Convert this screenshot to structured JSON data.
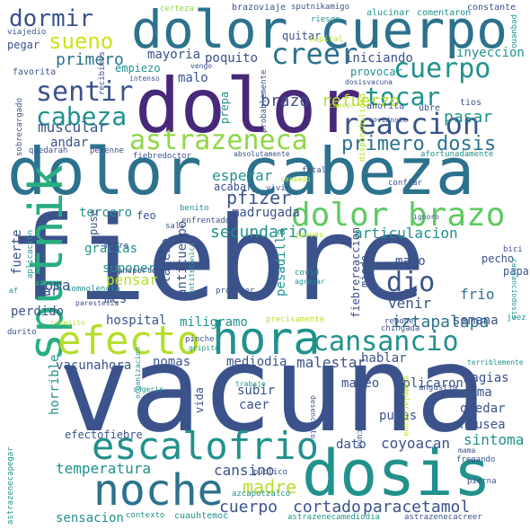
{
  "words": [
    {
      "text": "fiebre",
      "color": "#3b528b"
    },
    {
      "text": "vacuna",
      "color": "#3b528b"
    },
    {
      "text": "dolor",
      "color": "#482878"
    },
    {
      "text": "dolor cuerpo",
      "color": "#2c728e"
    },
    {
      "text": "dolor cabeza",
      "color": "#2c728e"
    },
    {
      "text": "dosis",
      "color": "#21918c"
    },
    {
      "text": "noche",
      "color": "#2c728e"
    },
    {
      "text": "sputnik",
      "color": "#28ae80"
    },
    {
      "text": "efecto",
      "color": "#b5de2b"
    },
    {
      "text": "hora",
      "color": "#21918c"
    },
    {
      "text": "escalofrio",
      "color": "#21918c"
    },
    {
      "text": "astrazeneca",
      "color": "#8fd744"
    },
    {
      "text": "dolor brazo",
      "color": "#5ec962"
    },
    {
      "text": "reaccion",
      "color": "#3b528b"
    },
    {
      "text": "creer",
      "color": "#2c728e"
    },
    {
      "text": "cuerpo",
      "color": "#21918c"
    },
    {
      "text": "sentir",
      "color": "#3b528b"
    },
    {
      "text": "cabeza",
      "color": "#21918c"
    },
    {
      "text": "tocar",
      "color": "#21918c"
    },
    {
      "text": "cansancio",
      "color": "#21918c"
    },
    {
      "text": "dormir",
      "color": "#3b528b"
    },
    {
      "text": "sueno",
      "color": "#cfe11c"
    },
    {
      "text": "dio",
      "color": "#3b528b"
    },
    {
      "text": "primero dosis",
      "color": "#2c728e"
    },
    {
      "text": "cortado",
      "color": "#3b528b"
    },
    {
      "text": "paracetamol",
      "color": "#3b528b"
    },
    {
      "text": "cuerpo",
      "color": "#3b528b"
    },
    {
      "text": "madre",
      "color": "#b5de2b"
    },
    {
      "text": "temperatura",
      "color": "#21918c"
    },
    {
      "text": "primero",
      "color": "#2c728e"
    },
    {
      "text": "pfizer",
      "color": "#3b528b"
    },
    {
      "text": "secundario",
      "color": "#21918c"
    },
    {
      "text": "articulacion",
      "color": "#21918c"
    },
    {
      "text": "coyoacan",
      "color": "#3b528b"
    },
    {
      "text": "iztapalapa",
      "color": "#2c728e"
    },
    {
      "text": "cansino",
      "color": "#3b528b"
    },
    {
      "text": "sintoma",
      "color": "#21918c"
    },
    {
      "text": "refuerzo",
      "color": "#b5de2b"
    },
    {
      "text": "pasar",
      "color": "#21918c"
    },
    {
      "text": "muscular",
      "color": "#3b528b"
    },
    {
      "text": "esperar",
      "color": "#21918c"
    },
    {
      "text": "brazo",
      "color": "#3b528b"
    },
    {
      "text": "malestar",
      "color": "#3b528b"
    },
    {
      "text": "venir",
      "color": "#3b528b"
    },
    {
      "text": "fuerte",
      "color": "#3b528b"
    },
    {
      "text": "toma",
      "color": "#3b528b"
    },
    {
      "text": "andar",
      "color": "#3b528b"
    },
    {
      "text": "pensar",
      "color": "#b5de2b"
    },
    {
      "text": "hospital",
      "color": "#3b528b"
    },
    {
      "text": "mareo",
      "color": "#3b528b"
    },
    {
      "text": "aplicaron",
      "color": "#3b528b"
    },
    {
      "text": "frio",
      "color": "#2c728e"
    },
    {
      "text": "madrugada",
      "color": "#3b528b"
    },
    {
      "text": "miligramo",
      "color": "#21918c"
    },
    {
      "text": "quedar",
      "color": "#3b528b"
    },
    {
      "text": "cama",
      "color": "#3b528b"
    },
    {
      "text": "nausea",
      "color": "#3b528b"
    },
    {
      "text": "magias",
      "color": "#3b528b"
    },
    {
      "text": "mediodia",
      "color": "#3b528b"
    },
    {
      "text": "nomas",
      "color": "#3b528b"
    },
    {
      "text": "vacunahora",
      "color": "#3b528b"
    },
    {
      "text": "horrible",
      "color": "#21918c"
    },
    {
      "text": "efectofiebre",
      "color": "#3b528b"
    },
    {
      "text": "subir",
      "color": "#3b528b"
    },
    {
      "text": "caer",
      "color": "#3b528b"
    },
    {
      "text": "hablar",
      "color": "#3b528b"
    },
    {
      "text": "pumas",
      "color": "#3b528b"
    },
    {
      "text": "dato",
      "color": "#3b528b"
    },
    {
      "text": "sensacion",
      "color": "#21918c"
    },
    {
      "text": "mayoria",
      "color": "#3b528b"
    },
    {
      "text": "poquito",
      "color": "#3b528b"
    },
    {
      "text": "iniciando",
      "color": "#3b528b"
    },
    {
      "text": "inyeccion",
      "color": "#21918c"
    },
    {
      "text": "quitar",
      "color": "#3b528b"
    },
    {
      "text": "empiezo",
      "color": "#21918c"
    },
    {
      "text": "malo",
      "color": "#3b528b"
    },
    {
      "text": "provocar",
      "color": "#21918c"
    },
    {
      "text": "pegar",
      "color": "#3b528b"
    },
    {
      "text": "favorita",
      "color": "#3b528b"
    },
    {
      "text": "tercero",
      "color": "#21918c"
    },
    {
      "text": "gracias",
      "color": "#21918c"
    },
    {
      "text": "feo",
      "color": "#3b528b"
    },
    {
      "text": "puse",
      "color": "#3b528b"
    },
    {
      "text": "suponer",
      "color": "#21918c"
    },
    {
      "text": "placebo",
      "color": "#3b528b"
    },
    {
      "text": "pesadilla",
      "color": "#21918c"
    },
    {
      "text": "anticuerpo",
      "color": "#3b528b"
    },
    {
      "text": "mes",
      "color": "#3b528b"
    },
    {
      "text": "mano",
      "color": "#3b528b"
    },
    {
      "text": "semana",
      "color": "#3b528b"
    },
    {
      "text": "perdido",
      "color": "#3b528b"
    },
    {
      "text": "par",
      "color": "#3b528b"
    },
    {
      "text": "pecho",
      "color": "#3b528b"
    },
    {
      "text": "papa",
      "color": "#3b528b"
    },
    {
      "text": "miedo",
      "color": "#3b528b"
    },
    {
      "text": "fiebrereaccion",
      "color": "#3b528b"
    },
    {
      "text": "vida",
      "color": "#3b528b"
    },
    {
      "text": "acabar",
      "color": "#3b528b"
    },
    {
      "text": "certeza",
      "color": "#8fd744"
    },
    {
      "text": "brazoviaje",
      "color": "#3b528b"
    },
    {
      "text": "sputnikamigo",
      "color": "#3b528b"
    },
    {
      "text": "alucinar",
      "color": "#21918c"
    },
    {
      "text": "comentaron",
      "color": "#21918c"
    },
    {
      "text": "constante",
      "color": "#3b528b"
    },
    {
      "text": "viajedio",
      "color": "#3b528b"
    },
    {
      "text": "pequeno",
      "color": "#21918c"
    },
    {
      "text": "riesgo",
      "color": "#21918c"
    },
    {
      "text": "capital",
      "color": "#b5de2b"
    },
    {
      "text": "dosisvacuna",
      "color": "#3b528b"
    },
    {
      "text": "ahorita",
      "color": "#3b528b"
    },
    {
      "text": "covidnote",
      "color": "#3b528b"
    },
    {
      "text": "ubre",
      "color": "#3b528b"
    },
    {
      "text": "tios",
      "color": "#3b528b"
    },
    {
      "text": "cancer",
      "color": "#b5de2b"
    },
    {
      "text": "intenso",
      "color": "#3b528b"
    },
    {
      "text": "vengo",
      "color": "#3b528b"
    },
    {
      "text": "recibimos",
      "color": "#3b528b"
    },
    {
      "text": "prepa",
      "color": "#21918c"
    },
    {
      "text": "probablemente",
      "color": "#3b528b"
    },
    {
      "text": "sobrecargado",
      "color": "#3b528b"
    },
    {
      "text": "quedarah",
      "color": "#3b528b"
    },
    {
      "text": "perenne",
      "color": "#3b528b"
    },
    {
      "text": "fiebredoctor",
      "color": "#3b528b"
    },
    {
      "text": "absolutamente",
      "color": "#3b528b"
    },
    {
      "text": "afortunadamente",
      "color": "#21918c"
    },
    {
      "text": "disponibilidad",
      "color": "#b5de2b"
    },
    {
      "text": "fatal",
      "color": "#3b528b"
    },
    {
      "text": "confiar",
      "color": "#3b528b"
    },
    {
      "text": "cansado",
      "color": "#b5de2b"
    },
    {
      "text": "vivir",
      "color": "#3b528b"
    },
    {
      "text": "sali",
      "color": "#3b528b"
    },
    {
      "text": "benito",
      "color": "#21918c"
    },
    {
      "text": "enfrentado",
      "color": "#3b528b"
    },
    {
      "text": "ignoro",
      "color": "#3b528b"
    },
    {
      "text": "jueves",
      "color": "#b5de2b"
    },
    {
      "text": "aplicacion",
      "color": "#21918c"
    },
    {
      "text": "metro",
      "color": "#3b528b"
    },
    {
      "text": "transporte",
      "color": "#3b528b"
    },
    {
      "text": "somnolencia",
      "color": "#21918c"
    },
    {
      "text": "antitetanica",
      "color": "#21918c"
    },
    {
      "text": "proteger",
      "color": "#3b528b"
    },
    {
      "text": "covid",
      "color": "#21918c"
    },
    {
      "text": "agregar",
      "color": "#21918c"
    },
    {
      "text": "bici",
      "color": "#3b528b"
    },
    {
      "text": "cansanciodosis",
      "color": "#21918c"
    },
    {
      "text": "af",
      "color": "#21918c"
    },
    {
      "text": "parestesia",
      "color": "#3b528b"
    },
    {
      "text": "conejito",
      "color": "#b5de2b"
    },
    {
      "text": "precisamente",
      "color": "#b5de2b"
    },
    {
      "text": "reponer",
      "color": "#3b528b"
    },
    {
      "text": "chingada",
      "color": "#3b528b"
    },
    {
      "text": "juez",
      "color": "#21918c"
    },
    {
      "text": "durito",
      "color": "#3b528b"
    },
    {
      "text": "pinche",
      "color": "#3b528b"
    },
    {
      "text": "gripita",
      "color": "#21918c"
    },
    {
      "text": "terriblemente",
      "color": "#21918c"
    },
    {
      "text": "sugerir",
      "color": "#21918c"
    },
    {
      "text": "organizacion",
      "color": "#21918c"
    },
    {
      "text": "desencanto",
      "color": "#3b528b"
    },
    {
      "text": "diohora",
      "color": "#3b528b"
    },
    {
      "text": "ejemplarvacuna",
      "color": "#b5de2b"
    },
    {
      "text": "angustia",
      "color": "#3b528b"
    },
    {
      "text": "trabaje",
      "color": "#21918c"
    },
    {
      "text": "brazovacuna",
      "color": "#3b528b"
    },
    {
      "text": "publico",
      "color": "#3b528b"
    },
    {
      "text": "mama",
      "color": "#3b528b"
    },
    {
      "text": "fregando",
      "color": "#3b528b"
    },
    {
      "text": "azcapotzalco",
      "color": "#21918c"
    },
    {
      "text": "pierna",
      "color": "#3b528b"
    },
    {
      "text": "astrazenecapegar",
      "color": "#21918c"
    },
    {
      "text": "cuauhtemoc",
      "color": "#21918c"
    },
    {
      "text": "contexto",
      "color": "#21918c"
    },
    {
      "text": "astrazenecamediodia",
      "color": "#21918c"
    },
    {
      "text": "astrazenecacreer",
      "color": "#3b528b"
    }
  ]
}
